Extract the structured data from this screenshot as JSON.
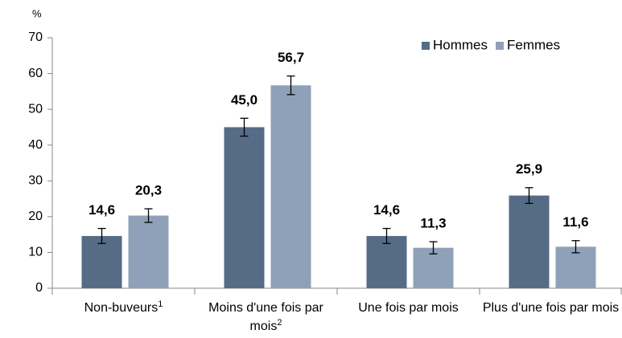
{
  "chart_data": {
    "type": "bar",
    "y_axis_label": "%",
    "categories": [
      "Non-buveurs",
      "Moins d'une fois par mois",
      "Une fois par mois",
      "Plus d'une fois par mois"
    ],
    "category_footnotes": [
      "1",
      "2",
      null,
      null
    ],
    "series": [
      {
        "name": "Hommes",
        "color": "#566b85",
        "values": [
          14.6,
          45.0,
          14.6,
          25.9
        ],
        "value_labels": [
          "14,6",
          "45,0",
          "14,6",
          "25,9"
        ],
        "errors": [
          2.1,
          2.5,
          2.1,
          2.2
        ]
      },
      {
        "name": "Femmes",
        "color": "#8fa1b8",
        "values": [
          20.3,
          56.7,
          11.3,
          11.6
        ],
        "value_labels": [
          "20,3",
          "56,7",
          "11,3",
          "11,6"
        ],
        "errors": [
          1.9,
          2.6,
          1.7,
          1.7
        ]
      }
    ],
    "ylim": [
      0,
      70
    ],
    "yticks": [
      0,
      10,
      20,
      30,
      40,
      50,
      60,
      70
    ],
    "grid": false,
    "legend": "top-right"
  }
}
